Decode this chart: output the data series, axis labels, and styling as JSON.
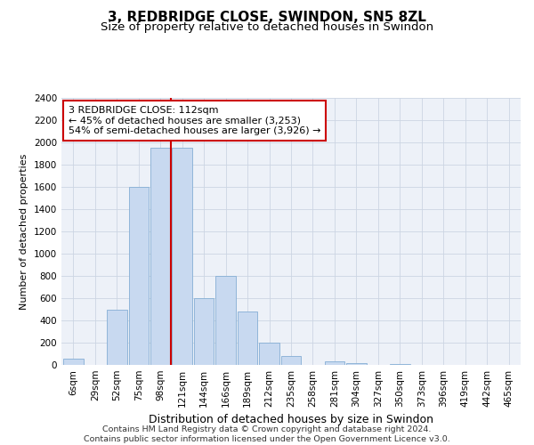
{
  "title": "3, REDBRIDGE CLOSE, SWINDON, SN5 8ZL",
  "subtitle": "Size of property relative to detached houses in Swindon",
  "xlabel": "Distribution of detached houses by size in Swindon",
  "ylabel": "Number of detached properties",
  "footer_line1": "Contains HM Land Registry data © Crown copyright and database right 2024.",
  "footer_line2": "Contains public sector information licensed under the Open Government Licence v3.0.",
  "bar_labels": [
    "6sqm",
    "29sqm",
    "52sqm",
    "75sqm",
    "98sqm",
    "121sqm",
    "144sqm",
    "166sqm",
    "189sqm",
    "212sqm",
    "235sqm",
    "258sqm",
    "281sqm",
    "304sqm",
    "327sqm",
    "350sqm",
    "373sqm",
    "396sqm",
    "419sqm",
    "442sqm",
    "465sqm"
  ],
  "bar_values": [
    55,
    0,
    500,
    1600,
    1950,
    1950,
    600,
    800,
    480,
    200,
    80,
    0,
    30,
    20,
    0,
    10,
    0,
    0,
    0,
    0,
    0
  ],
  "bar_color": "#c8d9f0",
  "bar_edgecolor": "#85aed4",
  "grid_color": "#ccd5e3",
  "background_color": "#edf1f8",
  "vline_x_index": 4.5,
  "vline_color": "#cc0000",
  "annotation_text": "3 REDBRIDGE CLOSE: 112sqm\n← 45% of detached houses are smaller (3,253)\n54% of semi-detached houses are larger (3,926) →",
  "annotation_box_edgecolor": "#cc0000",
  "annotation_box_facecolor": "#ffffff",
  "ylim": [
    0,
    2400
  ],
  "yticks": [
    0,
    200,
    400,
    600,
    800,
    1000,
    1200,
    1400,
    1600,
    1800,
    2000,
    2200,
    2400
  ],
  "title_fontsize": 11,
  "subtitle_fontsize": 9.5,
  "xlabel_fontsize": 9,
  "ylabel_fontsize": 8,
  "tick_fontsize": 7.5,
  "annotation_fontsize": 8,
  "footer_fontsize": 6.8
}
